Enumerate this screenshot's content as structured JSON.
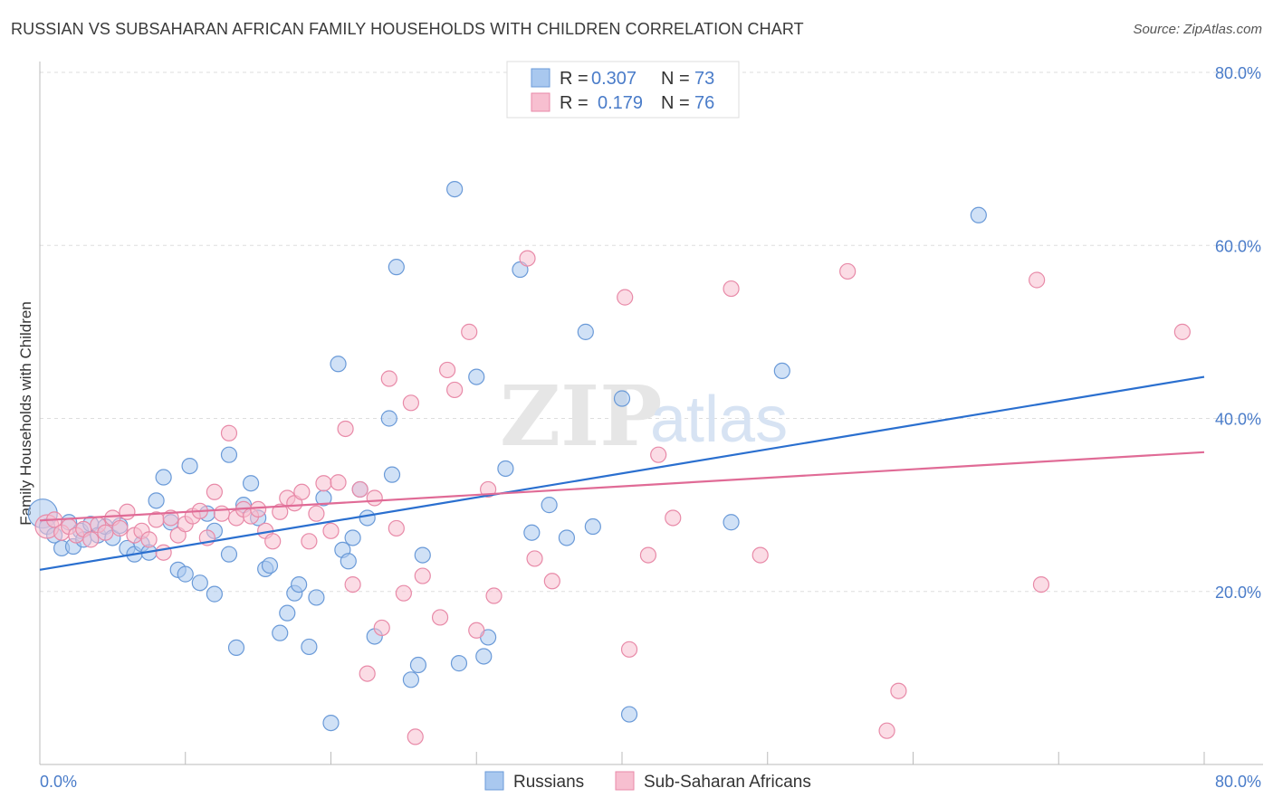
{
  "title": "RUSSIAN VS SUBSAHARAN AFRICAN FAMILY HOUSEHOLDS WITH CHILDREN CORRELATION CHART",
  "source": "Source: ZipAtlas.com",
  "watermark": {
    "zip": "ZIP",
    "atlas": "atlas"
  },
  "legend_top": [
    {
      "r_label": "R =",
      "r_value": "0.307",
      "n_label": "N =",
      "n_value": "73"
    },
    {
      "r_label": "R =",
      "r_value": "0.179",
      "n_label": "N =",
      "n_value": "76"
    }
  ],
  "colors": {
    "russians_fill": "#a9c8ef",
    "russians_stroke": "#6a9ad8",
    "russians_line": "#2a6fcf",
    "africans_fill": "#f7bfd0",
    "africans_stroke": "#e88aa8",
    "africans_line": "#e06b96",
    "accent_text": "#4a7cc9",
    "grid": "#dddddd"
  },
  "chart_data": {
    "type": "scatter",
    "title": "RUSSIAN VS SUBSAHARAN AFRICAN FAMILY HOUSEHOLDS WITH CHILDREN CORRELATION CHART",
    "xlabel": "",
    "ylabel": "Family Households with Children",
    "xlim": [
      0,
      80
    ],
    "ylim": [
      0,
      85
    ],
    "x_tick_labels": [
      "0.0%",
      "80.0%"
    ],
    "y_ticks": [
      20,
      40,
      60,
      80
    ],
    "y_tick_labels": [
      "20.0%",
      "40.0%",
      "60.0%",
      "80.0%"
    ],
    "grid": true,
    "legend_position": "bottom",
    "series": [
      {
        "name": "Russians",
        "r": 0.307,
        "n": 73,
        "trend": [
          [
            0,
            22.5
          ],
          [
            80,
            44.8
          ]
        ],
        "points": [
          [
            0.2,
            29.0
          ],
          [
            0.5,
            27.5
          ],
          [
            1.0,
            26.5
          ],
          [
            1.5,
            25.0
          ],
          [
            2.0,
            28.0
          ],
          [
            2.3,
            25.2
          ],
          [
            2.8,
            27.0
          ],
          [
            3.0,
            26.0
          ],
          [
            3.5,
            27.8
          ],
          [
            4.0,
            26.5
          ],
          [
            4.5,
            27.5
          ],
          [
            5.0,
            26.2
          ],
          [
            5.5,
            27.6
          ],
          [
            6.0,
            25.0
          ],
          [
            6.5,
            24.3
          ],
          [
            7.0,
            25.5
          ],
          [
            7.5,
            24.5
          ],
          [
            8.0,
            30.5
          ],
          [
            8.5,
            33.2
          ],
          [
            9.0,
            28.0
          ],
          [
            9.5,
            22.5
          ],
          [
            10.0,
            22.0
          ],
          [
            10.3,
            34.5
          ],
          [
            11.0,
            21.0
          ],
          [
            11.5,
            29.0
          ],
          [
            12.0,
            19.7
          ],
          [
            12.0,
            27.0
          ],
          [
            13.0,
            24.3
          ],
          [
            13.0,
            35.8
          ],
          [
            13.5,
            13.5
          ],
          [
            14.0,
            30.0
          ],
          [
            14.5,
            32.5
          ],
          [
            15.0,
            28.5
          ],
          [
            15.5,
            22.6
          ],
          [
            15.8,
            23.0
          ],
          [
            16.5,
            15.2
          ],
          [
            17.0,
            17.5
          ],
          [
            17.5,
            19.8
          ],
          [
            17.8,
            20.8
          ],
          [
            18.5,
            13.6
          ],
          [
            19.0,
            19.3
          ],
          [
            19.5,
            30.8
          ],
          [
            20.0,
            4.8
          ],
          [
            20.5,
            46.3
          ],
          [
            20.8,
            24.8
          ],
          [
            21.2,
            23.5
          ],
          [
            21.5,
            26.2
          ],
          [
            22.0,
            31.8
          ],
          [
            22.5,
            28.5
          ],
          [
            23.0,
            14.8
          ],
          [
            24.0,
            40.0
          ],
          [
            24.2,
            33.5
          ],
          [
            24.5,
            57.5
          ],
          [
            25.5,
            9.8
          ],
          [
            26.0,
            11.5
          ],
          [
            26.3,
            24.2
          ],
          [
            28.5,
            66.5
          ],
          [
            28.8,
            11.7
          ],
          [
            30.0,
            44.8
          ],
          [
            30.5,
            12.5
          ],
          [
            30.8,
            14.7
          ],
          [
            32.0,
            34.2
          ],
          [
            33.0,
            57.2
          ],
          [
            33.8,
            26.8
          ],
          [
            35.0,
            30.0
          ],
          [
            36.2,
            26.2
          ],
          [
            37.5,
            50.0
          ],
          [
            38.0,
            27.5
          ],
          [
            40.0,
            42.3
          ],
          [
            40.5,
            5.8
          ],
          [
            47.5,
            28.0
          ],
          [
            51.0,
            45.5
          ],
          [
            64.5,
            63.5
          ]
        ]
      },
      {
        "name": "Sub-Saharan Africans",
        "r": 0.179,
        "n": 76,
        "trend": [
          [
            0,
            28.2
          ],
          [
            80,
            36.1
          ]
        ],
        "points": [
          [
            0.5,
            27.5
          ],
          [
            1.0,
            28.3
          ],
          [
            1.5,
            26.8
          ],
          [
            2.0,
            27.5
          ],
          [
            2.5,
            26.5
          ],
          [
            3.0,
            27.2
          ],
          [
            3.5,
            26.0
          ],
          [
            4.0,
            27.7
          ],
          [
            4.5,
            26.8
          ],
          [
            5.0,
            28.5
          ],
          [
            5.5,
            27.3
          ],
          [
            6.0,
            29.2
          ],
          [
            6.5,
            26.5
          ],
          [
            7.0,
            27.0
          ],
          [
            7.5,
            26.0
          ],
          [
            8.0,
            28.3
          ],
          [
            8.5,
            24.5
          ],
          [
            9.0,
            28.5
          ],
          [
            9.5,
            26.5
          ],
          [
            10.0,
            27.8
          ],
          [
            10.5,
            28.7
          ],
          [
            11.0,
            29.3
          ],
          [
            11.5,
            26.2
          ],
          [
            12.0,
            31.5
          ],
          [
            12.5,
            29.0
          ],
          [
            13.0,
            38.3
          ],
          [
            13.5,
            28.5
          ],
          [
            14.0,
            29.5
          ],
          [
            14.5,
            28.7
          ],
          [
            15.0,
            29.5
          ],
          [
            15.5,
            27.0
          ],
          [
            16.0,
            25.8
          ],
          [
            16.5,
            29.2
          ],
          [
            17.0,
            30.8
          ],
          [
            17.5,
            30.2
          ],
          [
            18.0,
            31.5
          ],
          [
            18.5,
            25.8
          ],
          [
            19.0,
            29.0
          ],
          [
            19.5,
            32.5
          ],
          [
            20.0,
            27.0
          ],
          [
            20.5,
            32.6
          ],
          [
            21.0,
            38.8
          ],
          [
            21.5,
            20.8
          ],
          [
            22.0,
            31.8
          ],
          [
            22.5,
            10.5
          ],
          [
            23.0,
            30.8
          ],
          [
            23.5,
            15.8
          ],
          [
            24.0,
            44.6
          ],
          [
            24.5,
            27.3
          ],
          [
            25.0,
            19.8
          ],
          [
            25.5,
            41.8
          ],
          [
            25.8,
            3.2
          ],
          [
            26.3,
            21.8
          ],
          [
            27.5,
            17.0
          ],
          [
            28.0,
            45.6
          ],
          [
            28.5,
            43.3
          ],
          [
            29.5,
            50.0
          ],
          [
            30.0,
            15.5
          ],
          [
            30.8,
            31.8
          ],
          [
            31.2,
            19.5
          ],
          [
            33.5,
            58.5
          ],
          [
            34.0,
            23.8
          ],
          [
            35.2,
            21.2
          ],
          [
            40.2,
            54.0
          ],
          [
            40.5,
            13.3
          ],
          [
            41.8,
            24.2
          ],
          [
            42.5,
            35.8
          ],
          [
            43.5,
            28.5
          ],
          [
            47.5,
            55.0
          ],
          [
            49.5,
            24.2
          ],
          [
            55.5,
            57.0
          ],
          [
            58.2,
            3.9
          ],
          [
            59.0,
            8.5
          ],
          [
            68.5,
            56.0
          ],
          [
            68.8,
            20.8
          ],
          [
            78.5,
            50.0
          ]
        ]
      }
    ]
  }
}
